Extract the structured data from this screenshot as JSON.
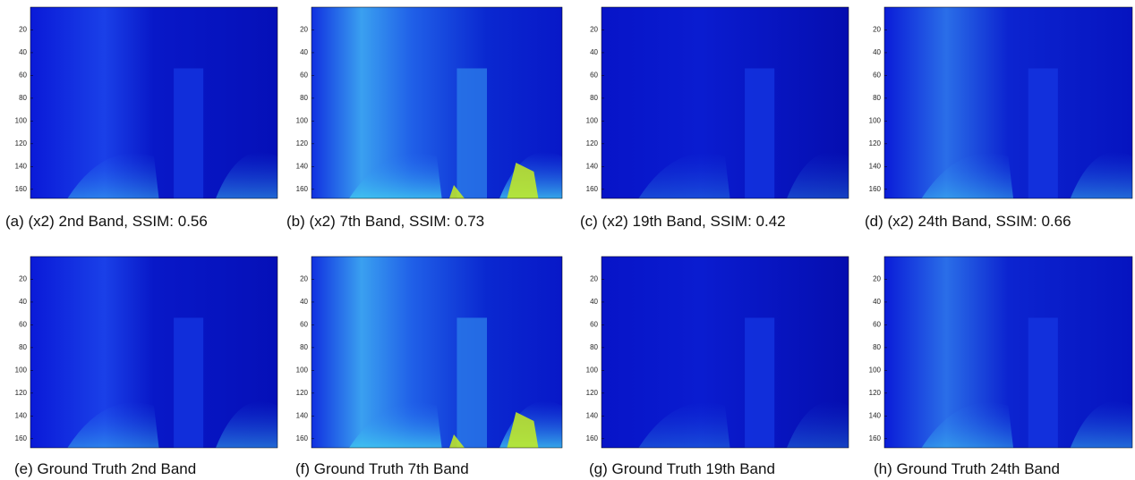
{
  "yticks": [
    20,
    40,
    60,
    80,
    100,
    120,
    140,
    160
  ],
  "panels": [
    {
      "caption": "(a)  (x2) 2nd Band, SSIM: 0.56"
    },
    {
      "caption": "(b)  (x2) 7th Band, SSIM: 0.73"
    },
    {
      "caption": "(c)  (x2) 19th Band, SSIM: 0.42"
    },
    {
      "caption": "(d)  (x2) 24th Band, SSIM: 0.66"
    },
    {
      "caption": "(e) Ground Truth 2nd Band"
    },
    {
      "caption": "(f) Ground Truth 7th Band"
    },
    {
      "caption": "(g) Ground Truth 19th Band"
    },
    {
      "caption": "(h) Ground Truth 24th Band"
    }
  ]
}
